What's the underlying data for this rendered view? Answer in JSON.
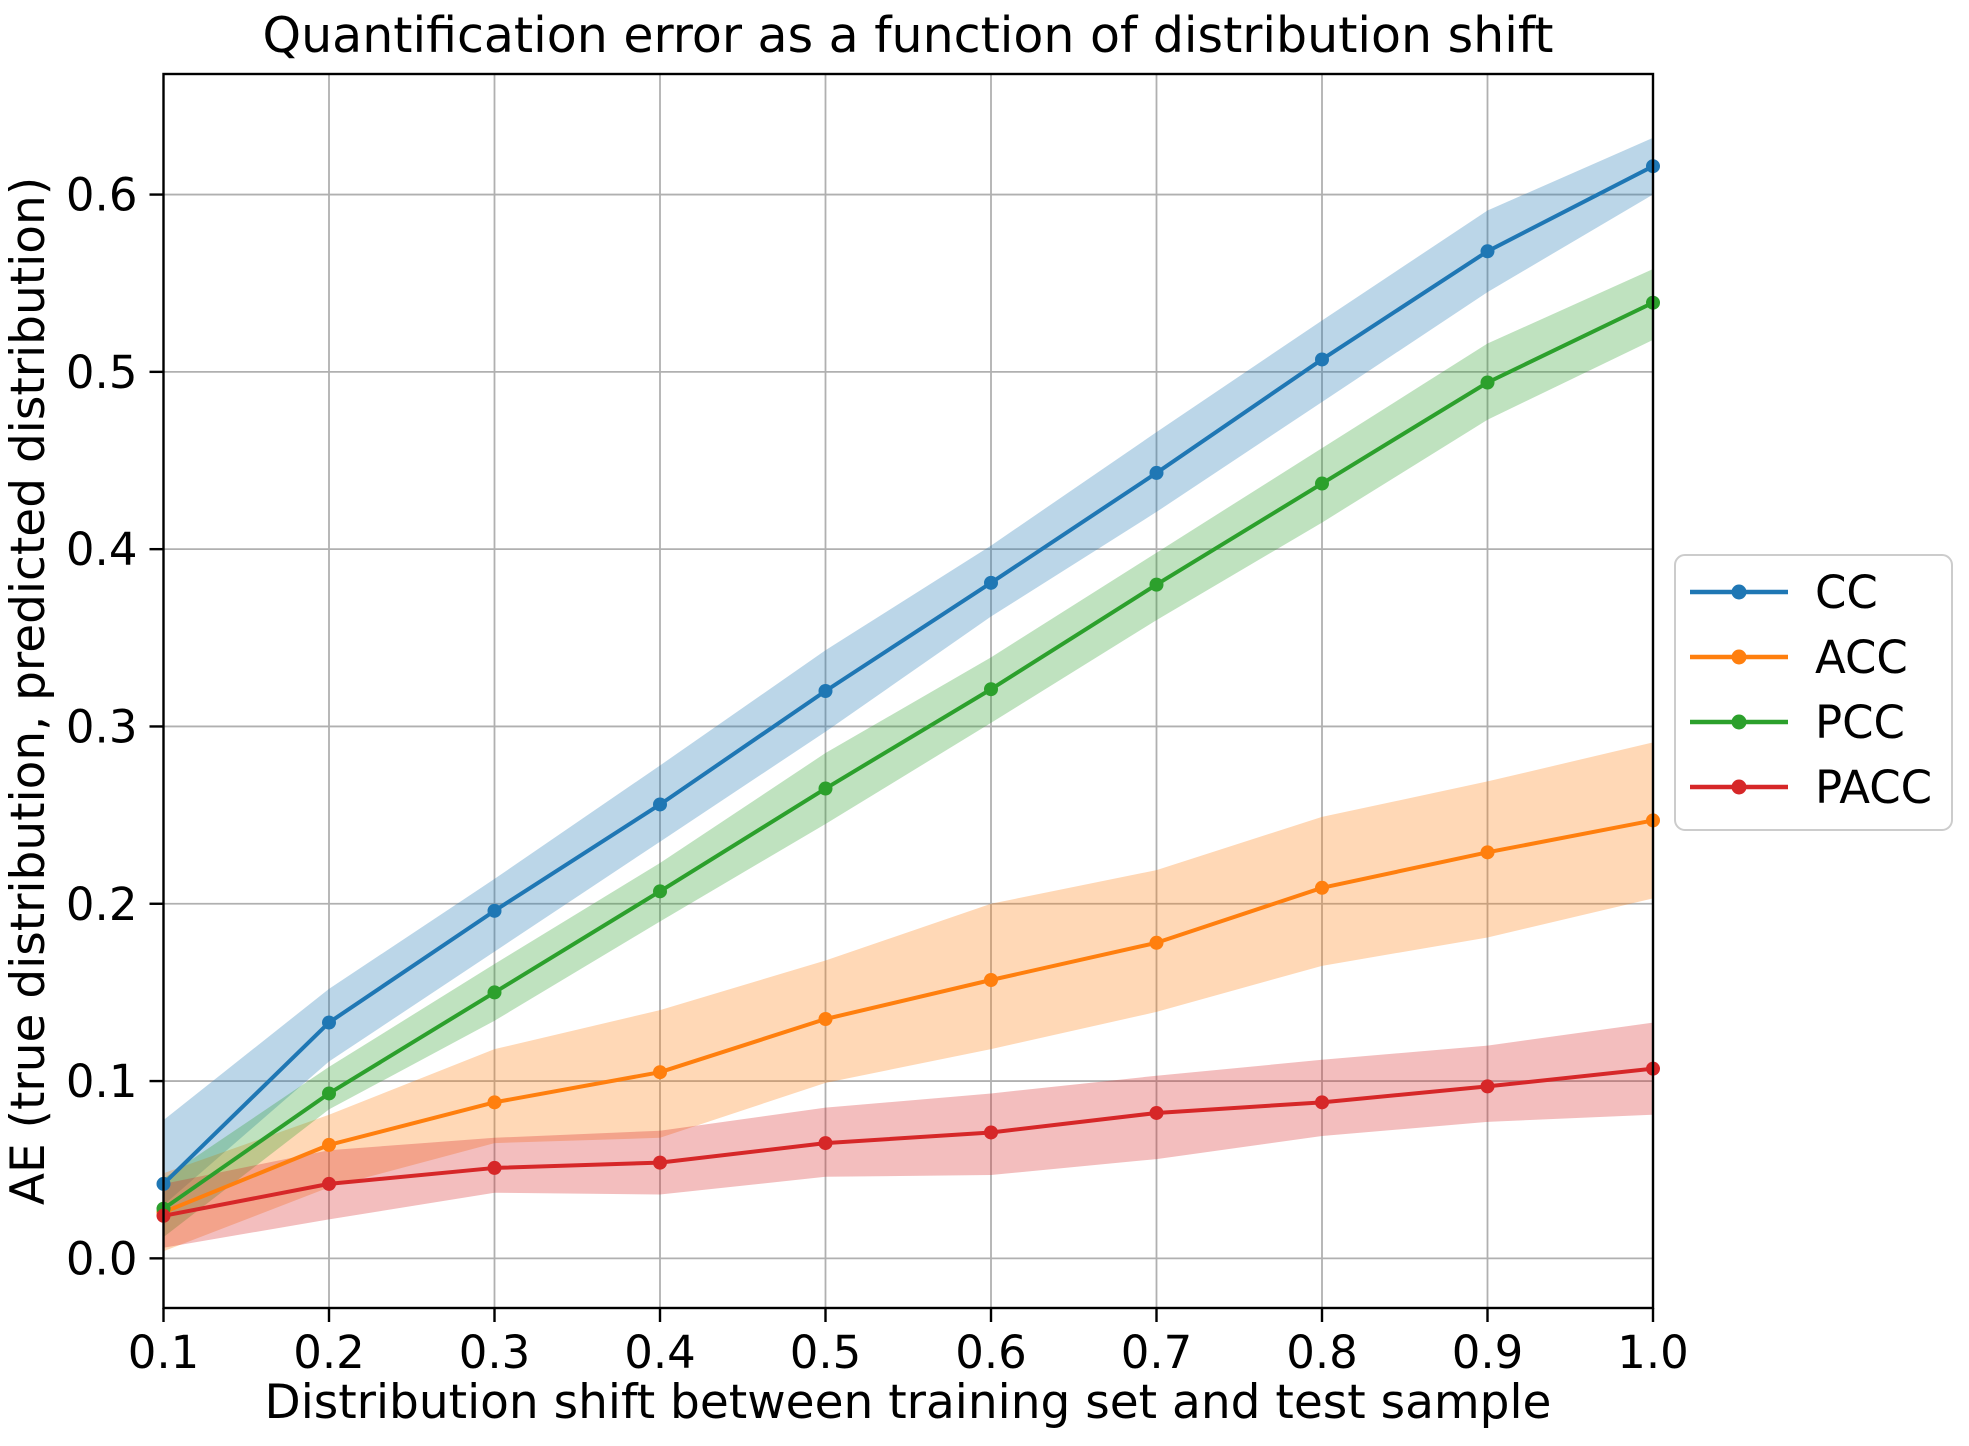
{
  "chart_data": {
    "type": "line",
    "title": "Quantification error as a function of distribution shift",
    "xlabel": "Distribution shift between training set and test sample",
    "ylabel": "AE (true distribution, predicted distribution)",
    "x": [
      0.1,
      0.2,
      0.3,
      0.4,
      0.5,
      0.6,
      0.7,
      0.8,
      0.9,
      1.0
    ],
    "x_tick_labels": [
      "0.1",
      "0.2",
      "0.3",
      "0.4",
      "0.5",
      "0.6",
      "0.7",
      "0.8",
      "0.9",
      "1.0"
    ],
    "y_ticks": [
      0.0,
      0.1,
      0.2,
      0.3,
      0.4,
      0.5,
      0.6
    ],
    "y_tick_labels": [
      "0.0",
      "0.1",
      "0.2",
      "0.3",
      "0.4",
      "0.5",
      "0.6"
    ],
    "xlim": [
      0.1,
      1.0
    ],
    "ylim": [
      -0.028,
      0.668
    ],
    "grid": true,
    "legend_position": "right-outside-center",
    "marker": "circle",
    "band_opacity": 0.3,
    "grid_color": "#b0b0b0",
    "spine_color": "#000000",
    "background": "#ffffff",
    "legend_border_color": "#cccccc",
    "series": [
      {
        "name": "CC",
        "color": "#1f77b4",
        "values": [
          0.042,
          0.133,
          0.196,
          0.256,
          0.32,
          0.381,
          0.443,
          0.507,
          0.568,
          0.616
        ],
        "band_lower": [
          0.03,
          0.111,
          0.173,
          0.235,
          0.297,
          0.362,
          0.421,
          0.483,
          0.545,
          0.6
        ],
        "band_upper": [
          0.078,
          0.152,
          0.214,
          0.278,
          0.343,
          0.402,
          0.466,
          0.529,
          0.591,
          0.632
        ]
      },
      {
        "name": "ACC",
        "color": "#ff7f0e",
        "values": [
          0.026,
          0.064,
          0.088,
          0.105,
          0.135,
          0.157,
          0.178,
          0.209,
          0.229,
          0.247
        ],
        "band_lower": [
          0.004,
          0.04,
          0.065,
          0.068,
          0.099,
          0.118,
          0.139,
          0.165,
          0.181,
          0.203
        ],
        "band_upper": [
          0.048,
          0.081,
          0.118,
          0.14,
          0.168,
          0.2,
          0.219,
          0.249,
          0.269,
          0.291
        ]
      },
      {
        "name": "PCC",
        "color": "#2ca02c",
        "values": [
          0.028,
          0.093,
          0.15,
          0.207,
          0.265,
          0.321,
          0.38,
          0.437,
          0.494,
          0.539
        ],
        "band_lower": [
          0.012,
          0.084,
          0.134,
          0.19,
          0.245,
          0.302,
          0.36,
          0.415,
          0.473,
          0.518
        ],
        "band_upper": [
          0.045,
          0.108,
          0.166,
          0.223,
          0.285,
          0.339,
          0.398,
          0.457,
          0.516,
          0.558
        ]
      },
      {
        "name": "PACC",
        "color": "#d62728",
        "values": [
          0.024,
          0.042,
          0.051,
          0.054,
          0.065,
          0.071,
          0.082,
          0.088,
          0.097,
          0.107
        ],
        "band_lower": [
          0.006,
          0.022,
          0.037,
          0.036,
          0.046,
          0.047,
          0.056,
          0.069,
          0.077,
          0.081
        ],
        "band_upper": [
          0.042,
          0.061,
          0.068,
          0.072,
          0.085,
          0.093,
          0.103,
          0.112,
          0.12,
          0.133
        ]
      }
    ]
  }
}
